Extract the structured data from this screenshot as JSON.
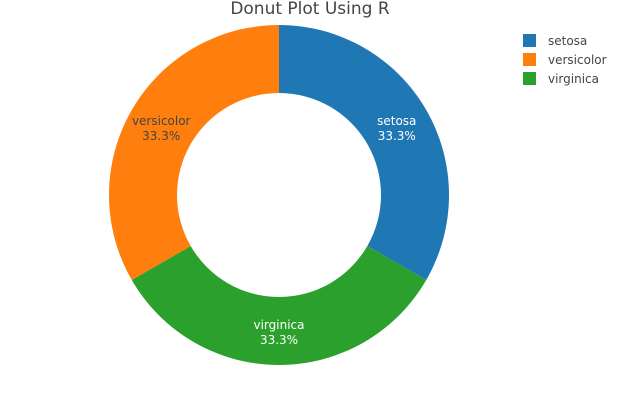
{
  "chart_data": {
    "type": "pie",
    "title": "Donut Plot Using R",
    "hole": 0.6,
    "show_percent": true,
    "legend_position": "top-right",
    "slices": [
      {
        "label": "setosa",
        "value": 33.3,
        "percent_label": "33.3%",
        "color": "#1f77b4",
        "text_color": "#ffffff"
      },
      {
        "label": "virginica",
        "value": 33.3,
        "percent_label": "33.3%",
        "color": "#2ca02c",
        "text_color": "#ffffff"
      },
      {
        "label": "versicolor",
        "value": 33.3,
        "percent_label": "33.3%",
        "color": "#ff7f0e",
        "text_color": "#444444"
      }
    ],
    "legend": [
      {
        "label": "setosa",
        "color": "#1f77b4"
      },
      {
        "label": "versicolor",
        "color": "#ff7f0e"
      },
      {
        "label": "virginica",
        "color": "#2ca02c"
      }
    ]
  }
}
